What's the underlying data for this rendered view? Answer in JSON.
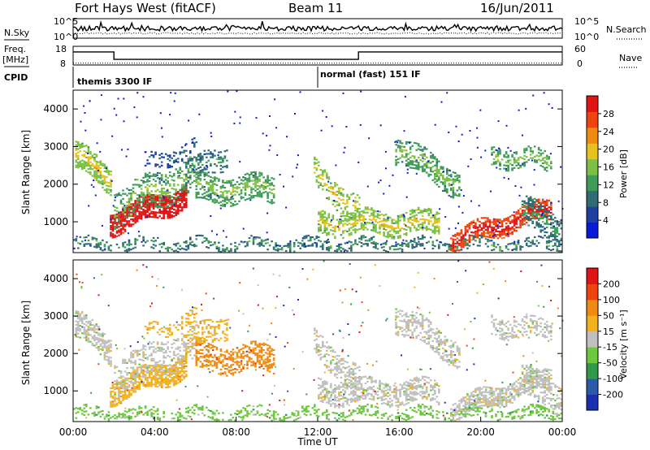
{
  "header": {
    "station": "Fort Hays West (fitACF)",
    "beam": "Beam 11",
    "date": "16/Jun/2011"
  },
  "side_labels": {
    "nsky": "N.Sky",
    "freq_line1": "Freq.",
    "freq_line2": "[MHz]",
    "cpid": "CPID",
    "nsearch": "N.Search",
    "nave": "Nave"
  },
  "chart_data": [
    {
      "type": "line",
      "panel": "noise",
      "y_left_ticks": [
        "10^5",
        "10^0"
      ],
      "y_right_ticks": [
        "10^5",
        "10^0"
      ],
      "series": [
        {
          "name": "N.Sky",
          "style": "solid"
        },
        {
          "name": "N.Search",
          "style": "dotted"
        }
      ]
    },
    {
      "type": "line",
      "panel": "frequency",
      "y_left_ticks": [
        "18",
        "8"
      ],
      "y_right_ticks": [
        "60",
        "0"
      ],
      "x_hours": [
        0,
        2,
        2,
        14,
        14,
        24
      ],
      "freq_mhz": [
        15,
        15,
        11,
        11,
        15,
        15
      ],
      "nave": [
        6,
        6,
        6,
        6,
        6,
        6
      ]
    },
    {
      "type": "table",
      "panel": "cpid",
      "segments": [
        {
          "label": "themis 3300 IF",
          "start_hour": 0,
          "end_hour": 12
        },
        {
          "label": "normal (fast) 151 IF",
          "start_hour": 12,
          "end_hour": 24
        }
      ]
    },
    {
      "type": "heatmap",
      "panel": "power",
      "ylabel": "Slant Range [km]",
      "yticks": [
        1000,
        2000,
        3000,
        4000
      ],
      "ylim": [
        180,
        4500
      ],
      "xlim": [
        0,
        24
      ],
      "colorbar": {
        "label": "Power [dB]",
        "ticks": [
          "28",
          "24",
          "20",
          "16",
          "12",
          "8",
          "4"
        ],
        "colors": [
          "#0a18d8",
          "#1e40a0",
          "#2f6c73",
          "#3f9b5a",
          "#7cc045",
          "#e6c21e",
          "#f08a12",
          "#f0440f",
          "#e01414"
        ]
      }
    },
    {
      "type": "heatmap",
      "panel": "velocity",
      "ylabel": "Slant Range [km]",
      "yticks": [
        1000,
        2000,
        3000,
        4000
      ],
      "ylim": [
        180,
        4500
      ],
      "xlim": [
        0,
        24
      ],
      "xlabel": "Time UT",
      "xticks": [
        "00:00",
        "04:00",
        "08:00",
        "12:00",
        "16:00",
        "20:00",
        "00:00"
      ],
      "colorbar": {
        "label": "Velocity [m s⁻¹]",
        "ticks": [
          "200",
          "100",
          "50",
          "15",
          "-15",
          "-50",
          "-100",
          "-200"
        ],
        "colors": [
          "#1c2fb0",
          "#2c5aa8",
          "#2f9a4a",
          "#6cc83c",
          "#c0c0c0",
          "#f2b21e",
          "#f08a12",
          "#f0440f",
          "#e01414"
        ]
      }
    }
  ]
}
